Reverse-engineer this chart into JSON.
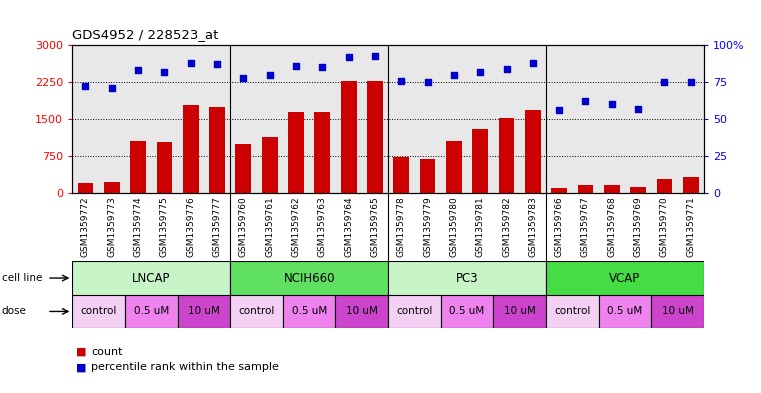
{
  "title": "GDS4952 / 228523_at",
  "samples": [
    "GSM1359772",
    "GSM1359773",
    "GSM1359774",
    "GSM1359775",
    "GSM1359776",
    "GSM1359777",
    "GSM1359760",
    "GSM1359761",
    "GSM1359762",
    "GSM1359763",
    "GSM1359764",
    "GSM1359765",
    "GSM1359778",
    "GSM1359779",
    "GSM1359780",
    "GSM1359781",
    "GSM1359782",
    "GSM1359783",
    "GSM1359766",
    "GSM1359767",
    "GSM1359768",
    "GSM1359769",
    "GSM1359770",
    "GSM1359771"
  ],
  "counts": [
    200,
    220,
    1050,
    1020,
    1780,
    1750,
    990,
    1130,
    1650,
    1630,
    2280,
    2280,
    720,
    690,
    1050,
    1290,
    1510,
    1680,
    90,
    160,
    160,
    115,
    280,
    310
  ],
  "percentiles": [
    72,
    71,
    83,
    82,
    88,
    87,
    78,
    80,
    86,
    85,
    92,
    93,
    76,
    75,
    80,
    82,
    84,
    88,
    56,
    62,
    60,
    57,
    75,
    75
  ],
  "cell_lines": [
    {
      "name": "LNCAP",
      "start": 0,
      "end": 6,
      "color": "#c8f5c8"
    },
    {
      "name": "NCIH660",
      "start": 6,
      "end": 12,
      "color": "#60e060"
    },
    {
      "name": "PC3",
      "start": 12,
      "end": 18,
      "color": "#c8f5c8"
    },
    {
      "name": "VCAP",
      "start": 18,
      "end": 24,
      "color": "#44dd44"
    }
  ],
  "doses": [
    {
      "label": "control",
      "start": 0,
      "end": 2,
      "color": "#f5d0f5"
    },
    {
      "label": "0.5 uM",
      "start": 2,
      "end": 4,
      "color": "#ee82ee"
    },
    {
      "label": "10 uM",
      "start": 4,
      "end": 6,
      "color": "#cc44cc"
    },
    {
      "label": "control",
      "start": 6,
      "end": 8,
      "color": "#f5d0f5"
    },
    {
      "label": "0.5 uM",
      "start": 8,
      "end": 10,
      "color": "#ee82ee"
    },
    {
      "label": "10 uM",
      "start": 10,
      "end": 12,
      "color": "#cc44cc"
    },
    {
      "label": "control",
      "start": 12,
      "end": 14,
      "color": "#f5d0f5"
    },
    {
      "label": "0.5 uM",
      "start": 14,
      "end": 16,
      "color": "#ee82ee"
    },
    {
      "label": "10 uM",
      "start": 16,
      "end": 18,
      "color": "#cc44cc"
    },
    {
      "label": "control",
      "start": 18,
      "end": 20,
      "color": "#f5d0f5"
    },
    {
      "label": "0.5 uM",
      "start": 20,
      "end": 22,
      "color": "#ee82ee"
    },
    {
      "label": "10 uM",
      "start": 22,
      "end": 24,
      "color": "#cc44cc"
    }
  ],
  "bar_color": "#cc0000",
  "dot_color": "#0000cc",
  "ylim_left": [
    0,
    3000
  ],
  "ylim_right": [
    0,
    100
  ],
  "yticks_left": [
    0,
    750,
    1500,
    2250,
    3000
  ],
  "yticks_right": [
    0,
    25,
    50,
    75,
    100
  ],
  "xticklabel_bg": "#d8d8d8",
  "legend_count_color": "#cc0000",
  "legend_dot_color": "#0000cc"
}
